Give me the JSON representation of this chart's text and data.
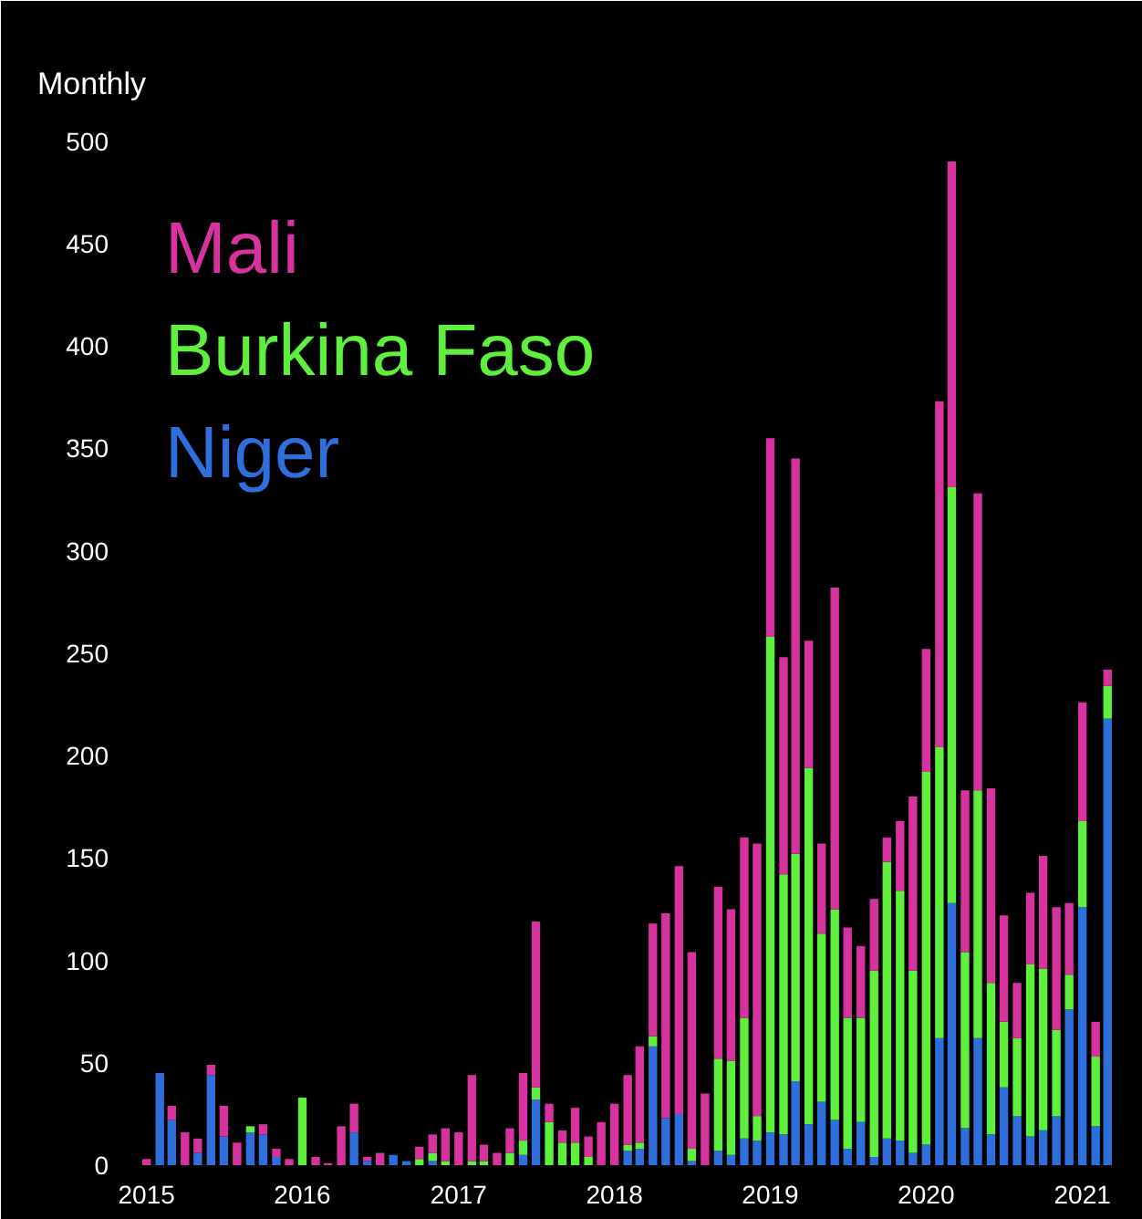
{
  "chart_data": {
    "type": "bar",
    "stacked": true,
    "ylabel": "Monthly",
    "x": [
      "2015-01",
      "2015-02",
      "2015-03",
      "2015-04",
      "2015-05",
      "2015-06",
      "2015-07",
      "2015-08",
      "2015-09",
      "2015-10",
      "2015-11",
      "2015-12",
      "2016-01",
      "2016-02",
      "2016-03",
      "2016-04",
      "2016-05",
      "2016-06",
      "2016-07",
      "2016-08",
      "2016-09",
      "2016-10",
      "2016-11",
      "2016-12",
      "2017-01",
      "2017-02",
      "2017-03",
      "2017-04",
      "2017-05",
      "2017-06",
      "2017-07",
      "2017-08",
      "2017-09",
      "2017-10",
      "2017-11",
      "2017-12",
      "2018-01",
      "2018-02",
      "2018-03",
      "2018-04",
      "2018-05",
      "2018-06",
      "2018-07",
      "2018-08",
      "2018-09",
      "2018-10",
      "2018-11",
      "2018-12",
      "2019-01",
      "2019-02",
      "2019-03",
      "2019-04",
      "2019-05",
      "2019-06",
      "2019-07",
      "2019-08",
      "2019-09",
      "2019-10",
      "2019-11",
      "2019-12",
      "2020-01",
      "2020-02",
      "2020-03",
      "2020-04",
      "2020-05",
      "2020-06",
      "2020-07",
      "2020-08",
      "2020-09",
      "2020-10",
      "2020-11",
      "2020-12",
      "2021-01",
      "2021-02",
      "2021-03"
    ],
    "series": [
      {
        "name": "Niger",
        "color": "#2f6fdc",
        "values": [
          0,
          45,
          22,
          0,
          6,
          44,
          14,
          0,
          16,
          15,
          4,
          0,
          0,
          0,
          0,
          0,
          16,
          2,
          0,
          5,
          2,
          0,
          2,
          0,
          0,
          0,
          0,
          0,
          0,
          5,
          32,
          0,
          0,
          0,
          0,
          0,
          0,
          7,
          8,
          58,
          23,
          25,
          2,
          0,
          7,
          5,
          13,
          12,
          16,
          15,
          41,
          20,
          31,
          22,
          8,
          21,
          4,
          13,
          12,
          6,
          10,
          62,
          128,
          18,
          62,
          15,
          38,
          24,
          14,
          17,
          24,
          76,
          126,
          19,
          218
        ]
      },
      {
        "name": "Burkina Faso",
        "color": "#5ef03c",
        "values": [
          0,
          0,
          0,
          0,
          0,
          0,
          0,
          0,
          3,
          0,
          0,
          0,
          33,
          0,
          0,
          0,
          0,
          0,
          0,
          0,
          0,
          3,
          4,
          2,
          0,
          2,
          2,
          0,
          6,
          7,
          6,
          21,
          11,
          11,
          4,
          0,
          0,
          3,
          3,
          5,
          0,
          0,
          6,
          0,
          45,
          46,
          59,
          12,
          242,
          127,
          111,
          174,
          82,
          103,
          64,
          51,
          91,
          135,
          122,
          89,
          182,
          142,
          203,
          86,
          121,
          74,
          32,
          38,
          84,
          79,
          42,
          17,
          42,
          34,
          16
        ]
      },
      {
        "name": "Mali",
        "color": "#d6339e",
        "values": [
          3,
          0,
          7,
          16,
          7,
          5,
          15,
          11,
          0,
          5,
          4,
          3,
          0,
          4,
          1,
          19,
          14,
          2,
          6,
          0,
          0,
          6,
          9,
          16,
          16,
          42,
          8,
          6,
          12,
          33,
          81,
          9,
          6,
          17,
          10,
          21,
          30,
          34,
          47,
          55,
          100,
          121,
          96,
          35,
          84,
          74,
          88,
          133,
          97,
          106,
          193,
          62,
          44,
          157,
          44,
          35,
          35,
          12,
          34,
          85,
          60,
          169,
          159,
          79,
          145,
          95,
          52,
          27,
          35,
          55,
          60,
          35,
          58,
          17,
          8
        ]
      }
    ],
    "xlim": [
      "2014-11-20",
      "2021-04-10"
    ],
    "xticks": [
      {
        "value": "2015-01",
        "label": "2015"
      },
      {
        "value": "2016-01",
        "label": "2016"
      },
      {
        "value": "2017-01",
        "label": "2017"
      },
      {
        "value": "2018-01",
        "label": "2018"
      },
      {
        "value": "2019-01",
        "label": "2019"
      },
      {
        "value": "2020-01",
        "label": "2020"
      },
      {
        "value": "2021-01",
        "label": "2021"
      }
    ],
    "ylim": [
      0,
      515
    ],
    "yticks": [
      0,
      50,
      100,
      150,
      200,
      250,
      300,
      350,
      400,
      450,
      500
    ],
    "legend": "top left"
  }
}
